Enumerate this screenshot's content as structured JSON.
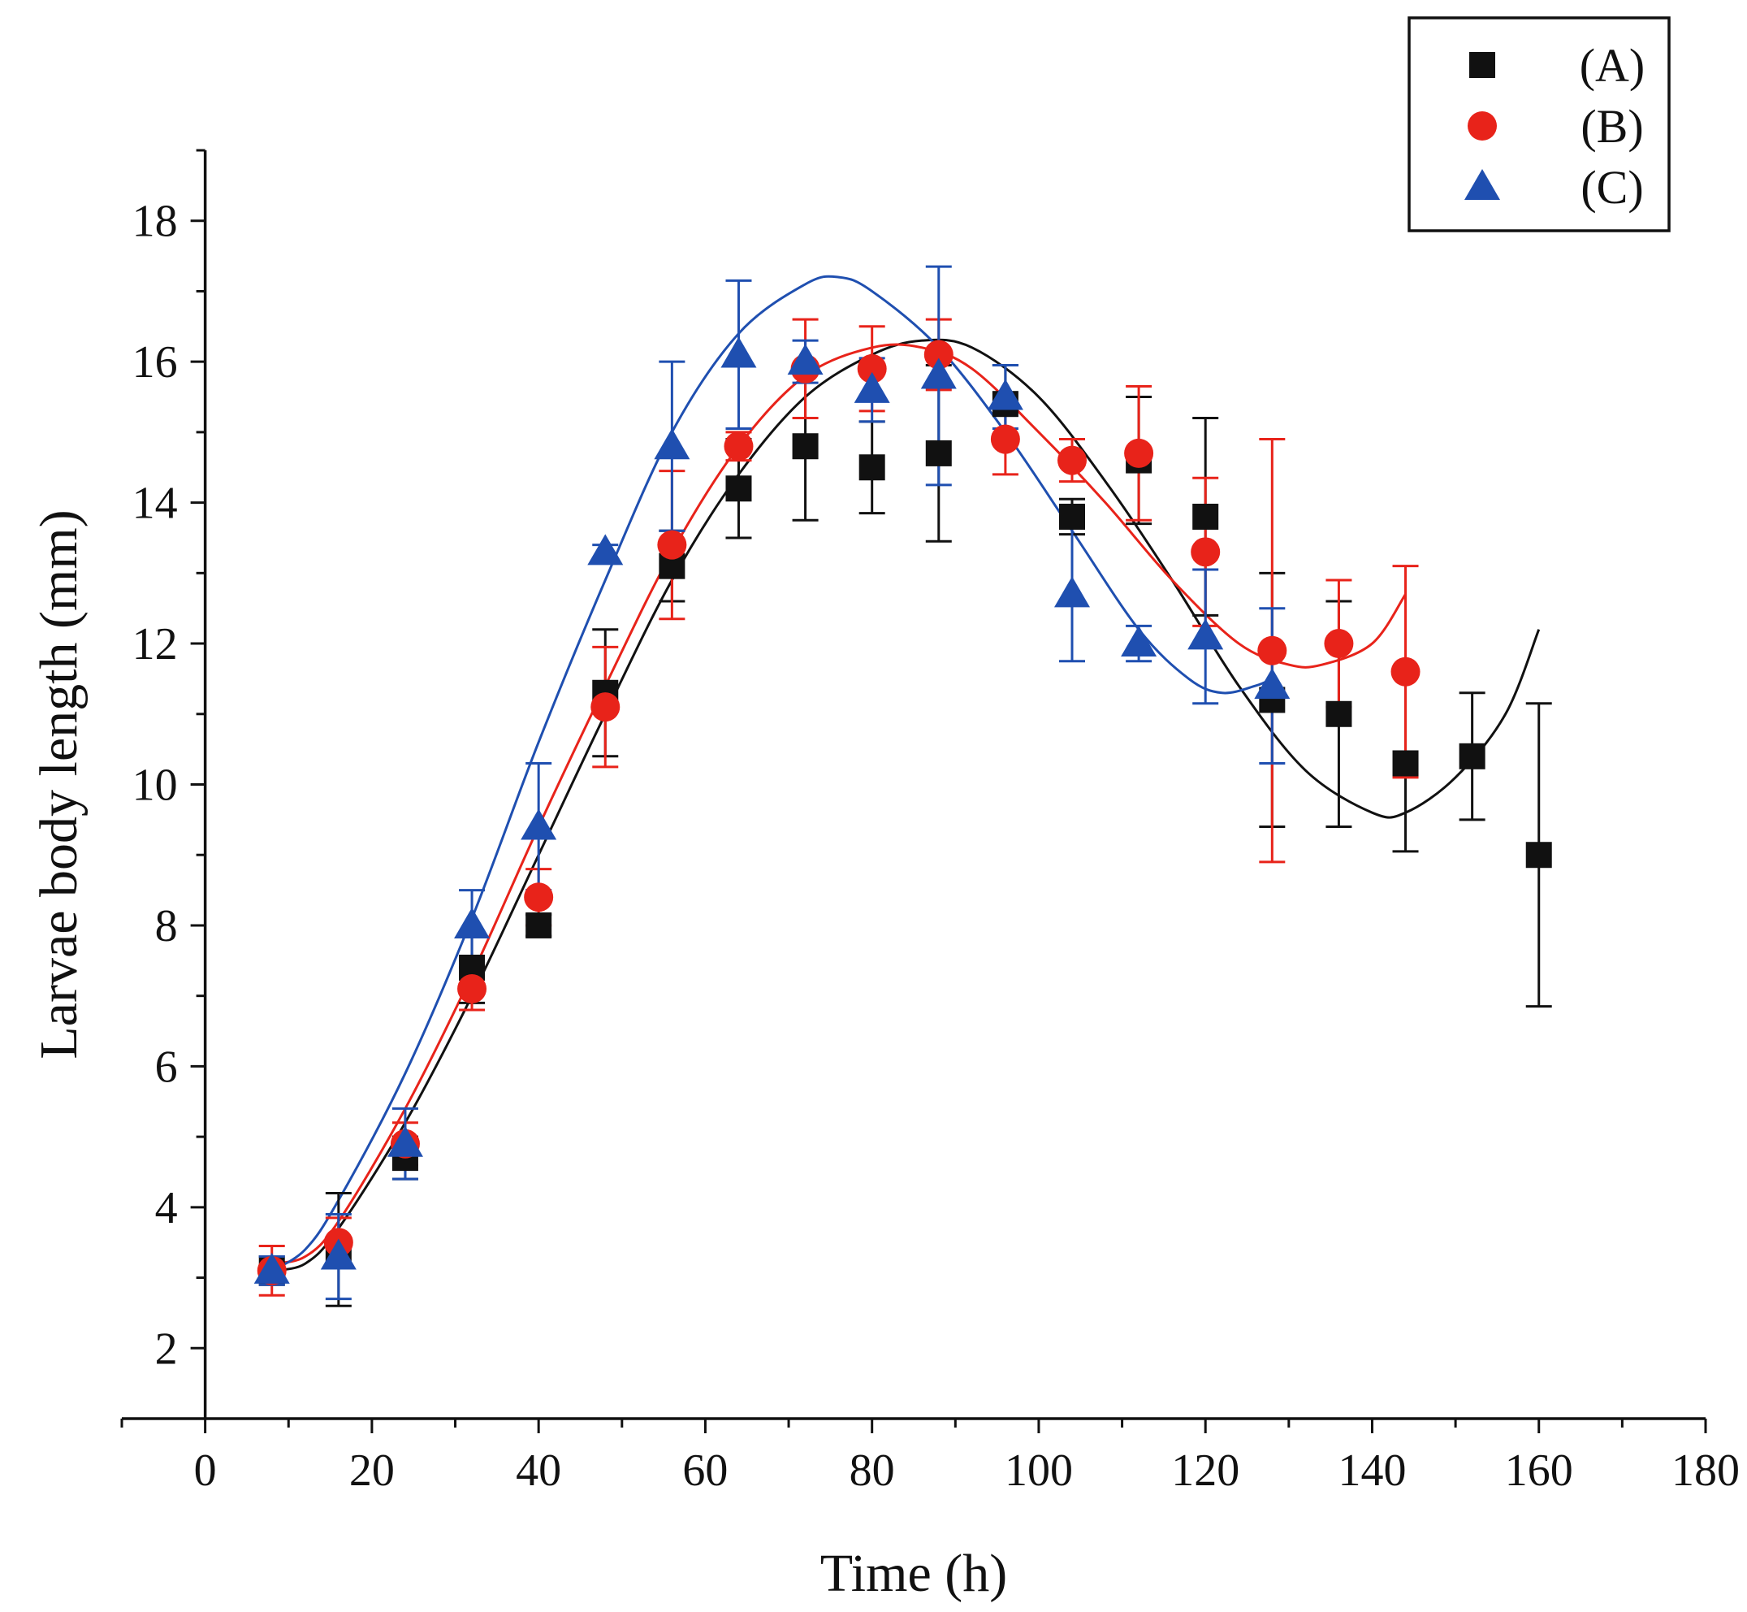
{
  "chart_data": {
    "type": "scatter",
    "xlabel": "Time (h)",
    "ylabel": "Larvae body length (mm)",
    "xlim": [
      -10,
      180
    ],
    "ylim": [
      1,
      19
    ],
    "xticks": [
      0,
      20,
      40,
      60,
      80,
      100,
      120,
      140,
      160,
      180
    ],
    "yticks": [
      2,
      4,
      6,
      8,
      10,
      12,
      14,
      16,
      18
    ],
    "legend_position": "top-right",
    "series": [
      {
        "name": "(A)",
        "marker": "square",
        "color": "#111111",
        "x": [
          8,
          16,
          24,
          32,
          40,
          48,
          56,
          64,
          72,
          80,
          88,
          96,
          104,
          112,
          120,
          128,
          136,
          144,
          152,
          160
        ],
        "y": [
          3.1,
          3.4,
          4.7,
          7.4,
          8.0,
          11.3,
          13.1,
          14.2,
          14.8,
          14.5,
          14.7,
          15.4,
          13.8,
          14.6,
          13.8,
          11.2,
          11.0,
          10.3,
          10.4,
          9.0
        ],
        "err": [
          0.2,
          0.8,
          0.3,
          0.5,
          0.15,
          0.9,
          0.5,
          0.7,
          1.05,
          0.65,
          1.25,
          0.55,
          0.25,
          0.9,
          1.4,
          1.8,
          1.6,
          1.25,
          0.9,
          2.15
        ],
        "fit": [
          [
            8,
            3.1
          ],
          [
            12,
            3.2
          ],
          [
            16,
            3.7
          ],
          [
            24,
            5.2
          ],
          [
            32,
            7.0
          ],
          [
            40,
            9.0
          ],
          [
            48,
            11.0
          ],
          [
            56,
            12.9
          ],
          [
            64,
            14.4
          ],
          [
            72,
            15.5
          ],
          [
            80,
            16.1
          ],
          [
            86,
            16.3
          ],
          [
            92,
            16.2
          ],
          [
            100,
            15.5
          ],
          [
            108,
            14.3
          ],
          [
            116,
            12.9
          ],
          [
            124,
            11.4
          ],
          [
            132,
            10.2
          ],
          [
            140,
            9.6
          ],
          [
            144,
            9.6
          ],
          [
            150,
            10.1
          ],
          [
            156,
            11.0
          ],
          [
            160,
            12.2
          ]
        ]
      },
      {
        "name": "(B)",
        "marker": "circle",
        "color": "#e8231a",
        "x": [
          8,
          16,
          24,
          32,
          40,
          48,
          56,
          64,
          72,
          80,
          88,
          96,
          104,
          112,
          120,
          128,
          136,
          144
        ],
        "y": [
          3.1,
          3.5,
          4.9,
          7.1,
          8.4,
          11.1,
          13.4,
          14.8,
          15.9,
          15.9,
          16.1,
          14.9,
          14.6,
          14.7,
          13.3,
          11.9,
          12.0,
          11.6
        ],
        "err": [
          0.35,
          0.35,
          0.3,
          0.3,
          0.4,
          0.85,
          1.05,
          0.2,
          0.7,
          0.6,
          0.5,
          0.5,
          0.3,
          0.95,
          1.05,
          3.0,
          0.9,
          1.5
        ],
        "fit": [
          [
            8,
            3.2
          ],
          [
            12,
            3.3
          ],
          [
            16,
            3.8
          ],
          [
            24,
            5.4
          ],
          [
            32,
            7.3
          ],
          [
            40,
            9.4
          ],
          [
            48,
            11.4
          ],
          [
            56,
            13.3
          ],
          [
            64,
            14.8
          ],
          [
            72,
            15.8
          ],
          [
            80,
            16.2
          ],
          [
            86,
            16.2
          ],
          [
            92,
            15.9
          ],
          [
            100,
            15.0
          ],
          [
            108,
            14.0
          ],
          [
            116,
            12.9
          ],
          [
            124,
            12.0
          ],
          [
            130,
            11.7
          ],
          [
            134,
            11.7
          ],
          [
            140,
            12.0
          ],
          [
            144,
            12.7
          ]
        ]
      },
      {
        "name": "(C)",
        "marker": "triangle",
        "color": "#1f4fb0",
        "x": [
          8,
          16,
          24,
          32,
          40,
          48,
          56,
          64,
          72,
          80,
          88,
          96,
          104,
          112,
          120,
          128
        ],
        "y": [
          3.1,
          3.3,
          4.9,
          8.0,
          9.4,
          13.3,
          14.8,
          16.1,
          16.0,
          15.6,
          15.8,
          15.5,
          12.7,
          12.0,
          12.1,
          11.4
        ],
        "err": [
          0.2,
          0.6,
          0.5,
          0.5,
          0.9,
          0.1,
          1.2,
          1.05,
          0.3,
          0.45,
          1.55,
          0.45,
          0.95,
          0.25,
          0.95,
          1.1
        ],
        "fit": [
          [
            8,
            3.1
          ],
          [
            12,
            3.4
          ],
          [
            16,
            4.1
          ],
          [
            24,
            5.9
          ],
          [
            32,
            8.1
          ],
          [
            40,
            10.6
          ],
          [
            48,
            12.9
          ],
          [
            56,
            15.0
          ],
          [
            64,
            16.4
          ],
          [
            72,
            17.1
          ],
          [
            76,
            17.2
          ],
          [
            80,
            17.0
          ],
          [
            88,
            16.2
          ],
          [
            96,
            15.0
          ],
          [
            104,
            13.6
          ],
          [
            112,
            12.2
          ],
          [
            118,
            11.5
          ],
          [
            122,
            11.3
          ],
          [
            126,
            11.4
          ],
          [
            128,
            11.5
          ]
        ]
      }
    ]
  }
}
